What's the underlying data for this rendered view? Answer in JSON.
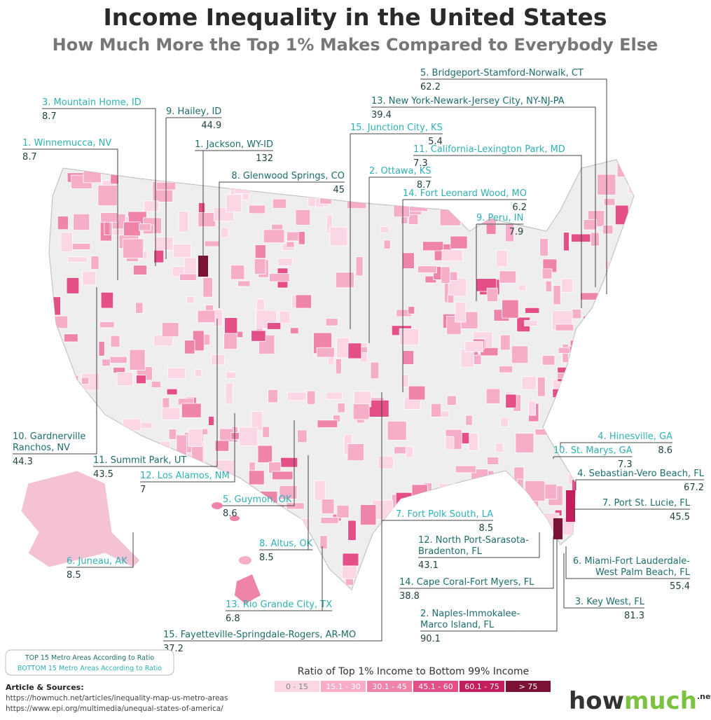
{
  "title": "Income Inequality in the United States",
  "subtitle": "How Much More the Top 1% Makes Compared to Everybody Else",
  "top_15": [
    {
      "name": [
        "5. Bridgeport-Stamford-Norwalk, CT"
      ],
      "value": 62.2
    },
    {
      "name": [
        "13. New York-Newark-Jersey City, NY-NJ-PA"
      ],
      "value": 39.4
    },
    {
      "name": [
        "1. Jackson, WY-ID"
      ],
      "value": 132
    },
    {
      "name": [
        "8. Glenwood Springs, CO"
      ],
      "value": 45
    },
    {
      "name": [
        "9. Hailey, ID"
      ],
      "value": 44.9
    },
    {
      "name": [
        "10. Gardnerville",
        "Ranchos, NV"
      ],
      "value": 44.3
    },
    {
      "name": [
        "11. Summit Park, UT"
      ],
      "value": 43.5
    },
    {
      "name": [
        "4. Sebastian-Vero Beach, FL"
      ],
      "value": 67.2
    },
    {
      "name": [
        "7. Port St. Lucie, FL"
      ],
      "value": 45.5
    },
    {
      "name": [
        "12. North Port-Sarasota-",
        "Bradenton, FL"
      ],
      "value": 43.1
    },
    {
      "name": [
        "6. Miami-Fort Lauderdale-",
        "West Palm Beach, FL"
      ],
      "value": 55.4
    },
    {
      "name": [
        "14. Cape Coral-Fort Myers, FL"
      ],
      "value": 38.8
    },
    {
      "name": [
        "3. Key West, FL"
      ],
      "value": 81.3
    },
    {
      "name": [
        "2. Naples-Immokalee-",
        "Marco Island, FL"
      ],
      "value": 90.1
    },
    {
      "name": [
        "15. Fayetteville-Springdale-Rogers, AR-MO"
      ],
      "value": 37.2
    }
  ],
  "bottom_15": [
    {
      "name": [
        "3. Mountain Home, ID"
      ],
      "value": 8.7
    },
    {
      "name": [
        "1. Winnemucca, NV"
      ],
      "value": 8.7
    },
    {
      "name": [
        "15. Junction City, KS"
      ],
      "value": 5.4
    },
    {
      "name": [
        "11. California-Lexington Park, MD"
      ],
      "value": 7.3
    },
    {
      "name": [
        "2. Ottawa, KS"
      ],
      "value": 8.7
    },
    {
      "name": [
        "14. Fort Leonard Wood, MO"
      ],
      "value": 6.2
    },
    {
      "name": [
        "9. Peru, IN"
      ],
      "value": 7.9
    },
    {
      "name": [
        "4. Hinesville, GA"
      ],
      "value": 8.6
    },
    {
      "name": [
        "10. St. Marys, GA"
      ],
      "value": 7.3
    },
    {
      "name": [
        "12. Los Alamos, NM"
      ],
      "value": 7
    },
    {
      "name": [
        "5. Guymon, OK"
      ],
      "value": 8.6
    },
    {
      "name": [
        "7. Fort Polk South, LA"
      ],
      "value": 8.5
    },
    {
      "name": [
        "8. Altus, OK"
      ],
      "value": 8.5
    },
    {
      "name": [
        "6. Juneau, AK"
      ],
      "value": 8.5
    },
    {
      "name": [
        "13. Rio Grande City, TX"
      ],
      "value": 6.8
    }
  ],
  "key": {
    "top": "TOP 15 Metro Areas According to Ratio",
    "bottom": "BOTTOM 15 Metro Areas According to Ratio",
    "top_color": "#1d6e6b",
    "bottom_color": "#2fb1b4"
  },
  "legend": {
    "title": "Ratio of Top 1% Income to Bottom 99% Income",
    "bins": [
      {
        "label": "0 - 15",
        "color": "#fbd7e5"
      },
      {
        "label": "15.1 - 30",
        "color": "#f6adc8"
      },
      {
        "label": "30.1 - 45",
        "color": "#ef84ab"
      },
      {
        "label": "45.1 - 60",
        "color": "#e44f88"
      },
      {
        "label": "60.1 - 75",
        "color": "#c21e5b"
      },
      {
        "label": "> 75",
        "color": "#7a1235"
      }
    ]
  },
  "sources": {
    "heading": "Article & Sources:",
    "links": [
      "https://howmuch.net/articles/inequality-map-us-metro-areas",
      "https://www.epi.org/multimedia/unequal-states-of-america/"
    ]
  },
  "logo": [
    "how",
    "much",
    ".net"
  ]
}
